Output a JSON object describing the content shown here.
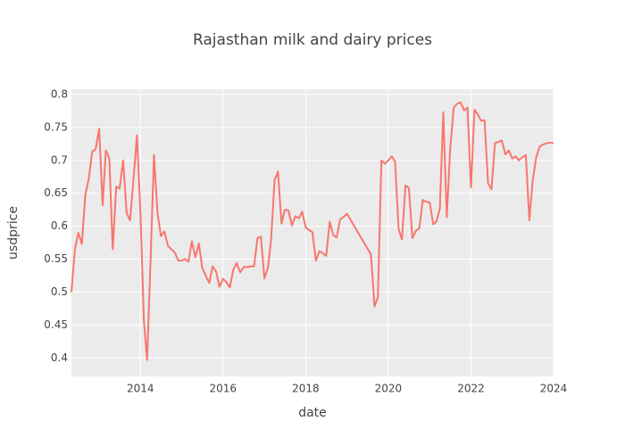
{
  "chart_data": {
    "type": "line",
    "title": "Rajasthan milk and dairy prices",
    "x_label": "date",
    "y_label": "usdprice",
    "x": [
      "2012-05",
      "2012-06",
      "2012-07",
      "2012-08",
      "2012-09",
      "2012-10",
      "2012-11",
      "2012-12",
      "2013-01",
      "2013-02",
      "2013-03",
      "2013-04",
      "2013-05",
      "2013-06",
      "2013-07",
      "2013-08",
      "2013-09",
      "2013-10",
      "2013-11",
      "2013-12",
      "2014-01",
      "2014-02",
      "2014-03",
      "2014-04",
      "2014-05",
      "2014-06",
      "2014-07",
      "2014-08",
      "2014-09",
      "2014-10",
      "2014-11",
      "2014-12",
      "2015-01",
      "2015-02",
      "2015-03",
      "2015-04",
      "2015-05",
      "2015-06",
      "2015-07",
      "2015-08",
      "2015-09",
      "2015-10",
      "2015-11",
      "2015-12",
      "2016-01",
      "2016-02",
      "2016-03",
      "2016-04",
      "2016-05",
      "2016-06",
      "2016-07",
      "2016-08",
      "2016-09",
      "2016-10",
      "2016-11",
      "2016-12",
      "2017-01",
      "2017-02",
      "2017-03",
      "2017-04",
      "2017-05",
      "2017-06",
      "2017-07",
      "2017-08",
      "2017-09",
      "2017-10",
      "2017-11",
      "2017-12",
      "2018-01",
      "2018-02",
      "2018-03",
      "2018-04",
      "2018-05",
      "2018-06",
      "2018-07",
      "2018-08",
      "2018-09",
      "2018-10",
      "2018-11",
      "2018-12",
      "2019-01",
      "2019-08",
      "2019-09",
      "2019-10",
      "2019-11",
      "2019-12",
      "2020-01",
      "2020-02",
      "2020-03",
      "2020-04",
      "2020-05",
      "2020-06",
      "2020-07",
      "2020-08",
      "2020-09",
      "2020-10",
      "2020-11",
      "2020-12",
      "2021-01",
      "2021-02",
      "2021-03",
      "2021-04",
      "2021-05",
      "2021-06",
      "2021-07",
      "2021-08",
      "2021-09",
      "2021-10",
      "2021-11",
      "2021-12",
      "2022-01",
      "2022-02",
      "2022-03",
      "2022-04",
      "2022-05",
      "2022-06",
      "2022-07",
      "2022-08",
      "2022-09",
      "2022-10",
      "2022-11",
      "2022-12",
      "2023-01",
      "2023-02",
      "2023-03",
      "2023-04",
      "2023-05",
      "2023-06",
      "2023-07",
      "2023-08",
      "2023-09",
      "2023-10",
      "2023-11",
      "2023-12",
      "2024-01"
    ],
    "series": [
      {
        "color": "#F8766D",
        "values": [
          0.5,
          0.565,
          0.59,
          0.573,
          0.648,
          0.672,
          0.713,
          0.717,
          0.748,
          0.632,
          0.715,
          0.703,
          0.565,
          0.66,
          0.657,
          0.7,
          0.62,
          0.609,
          0.672,
          0.738,
          0.62,
          0.455,
          0.397,
          0.55,
          0.708,
          0.62,
          0.585,
          0.592,
          0.57,
          0.565,
          0.56,
          0.548,
          0.548,
          0.55,
          0.546,
          0.577,
          0.553,
          0.574,
          0.537,
          0.525,
          0.514,
          0.539,
          0.531,
          0.508,
          0.52,
          0.515,
          0.507,
          0.534,
          0.544,
          0.53,
          0.538,
          0.538,
          0.539,
          0.539,
          0.582,
          0.584,
          0.521,
          0.537,
          0.58,
          0.67,
          0.683,
          0.604,
          0.625,
          0.624,
          0.601,
          0.615,
          0.612,
          0.622,
          0.598,
          0.594,
          0.591,
          0.548,
          0.562,
          0.559,
          0.555,
          0.607,
          0.587,
          0.583,
          0.61,
          0.614,
          0.619,
          0.557,
          0.478,
          0.492,
          0.7,
          0.695,
          0.7,
          0.706,
          0.698,
          0.596,
          0.58,
          0.662,
          0.658,
          0.582,
          0.593,
          0.597,
          0.64,
          0.637,
          0.636,
          0.603,
          0.607,
          0.627,
          0.773,
          0.614,
          0.717,
          0.78,
          0.786,
          0.788,
          0.776,
          0.78,
          0.659,
          0.777,
          0.77,
          0.76,
          0.761,
          0.665,
          0.656,
          0.726,
          0.728,
          0.73,
          0.709,
          0.715,
          0.703,
          0.706,
          0.7,
          0.705,
          0.708,
          0.609,
          0.67,
          0.705,
          0.721,
          0.724,
          0.726,
          0.727,
          0.726
        ]
      }
    ],
    "xlim": [
      "2012-05",
      "2024-01"
    ],
    "xticks": [
      "2014",
      "2016",
      "2018",
      "2020",
      "2022",
      "2024"
    ],
    "ylim": [
      0.372,
      0.808
    ],
    "yticks": [
      0.4,
      0.45,
      0.5,
      0.55,
      0.6,
      0.65,
      0.7,
      0.75,
      0.8
    ],
    "grid": true
  }
}
